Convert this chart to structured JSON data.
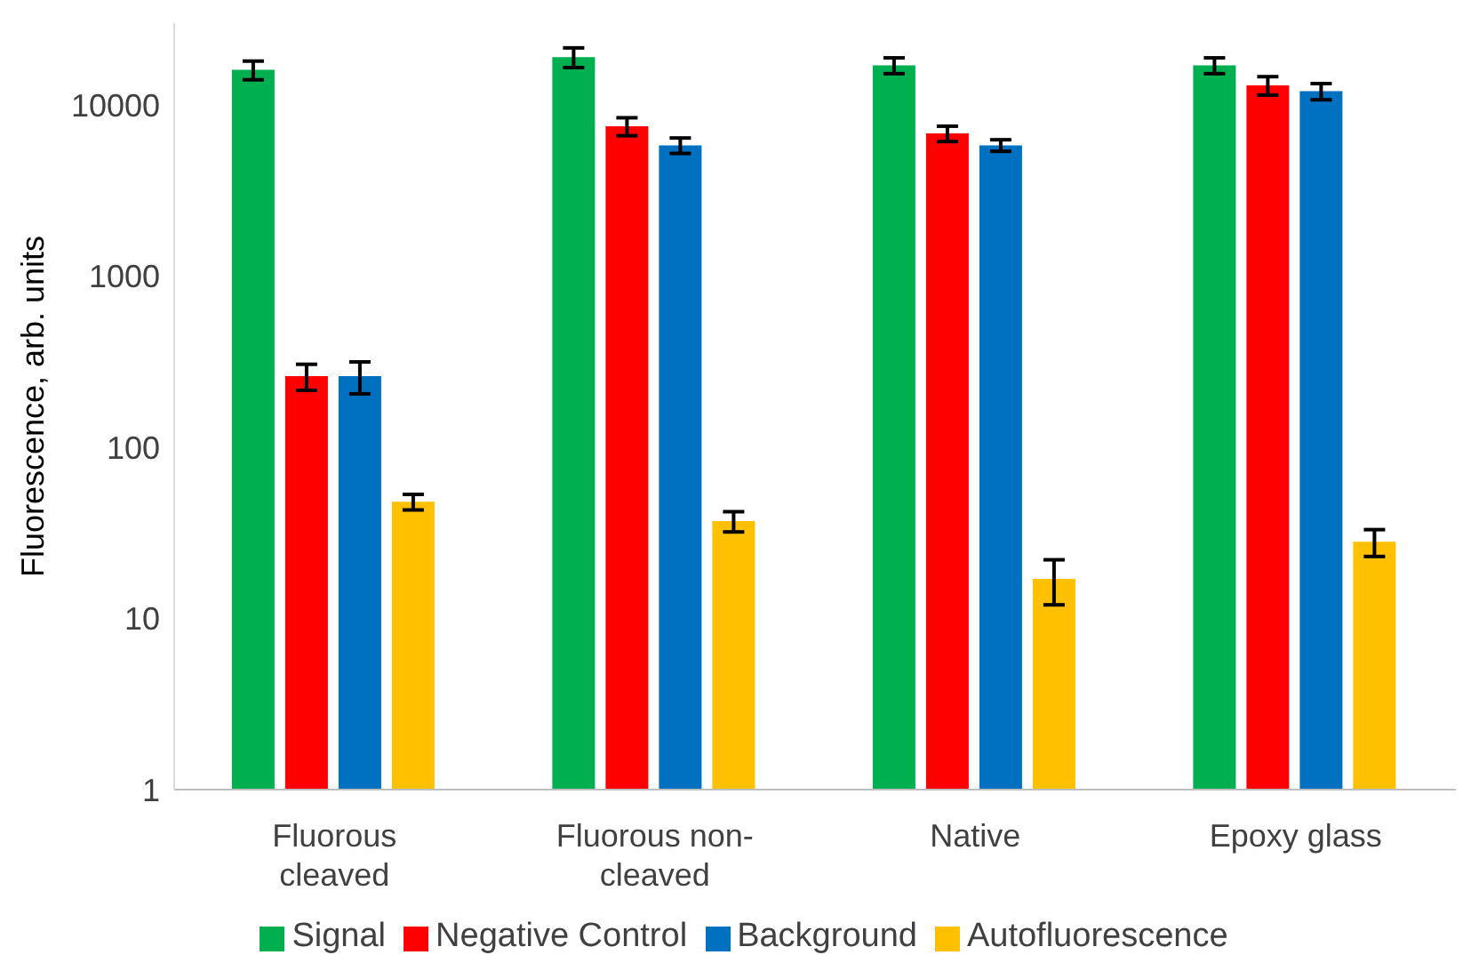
{
  "chart_data": {
    "type": "bar",
    "ylabel": "Fluorescence, arb. units",
    "categories": [
      "Fluorous cleaved",
      "Fluorous non-cleaved",
      "Native",
      "Epoxy glass"
    ],
    "series": [
      {
        "name": "Signal",
        "color": "#00b050",
        "values": [
          16000,
          19000,
          17000,
          17000
        ],
        "errors": [
          2000,
          2500,
          1800,
          1800
        ]
      },
      {
        "name": "Negative Control",
        "color": "#ff0000",
        "values": [
          260,
          7500,
          6800,
          13000
        ],
        "errors": [
          45,
          900,
          700,
          1600
        ]
      },
      {
        "name": "Background",
        "color": "#0070c0",
        "values": [
          260,
          5800,
          5800,
          12000
        ],
        "errors": [
          55,
          600,
          450,
          1300
        ]
      },
      {
        "name": "Autofluorescence",
        "color": "#ffc000",
        "values": [
          48,
          37,
          17,
          28
        ],
        "errors": [
          5,
          5,
          5,
          5
        ]
      }
    ],
    "log": "y",
    "ylim": [
      1,
      30000
    ],
    "yticks": [
      1,
      10,
      100,
      1000,
      10000
    ],
    "grid": false,
    "legend": "bottom"
  }
}
